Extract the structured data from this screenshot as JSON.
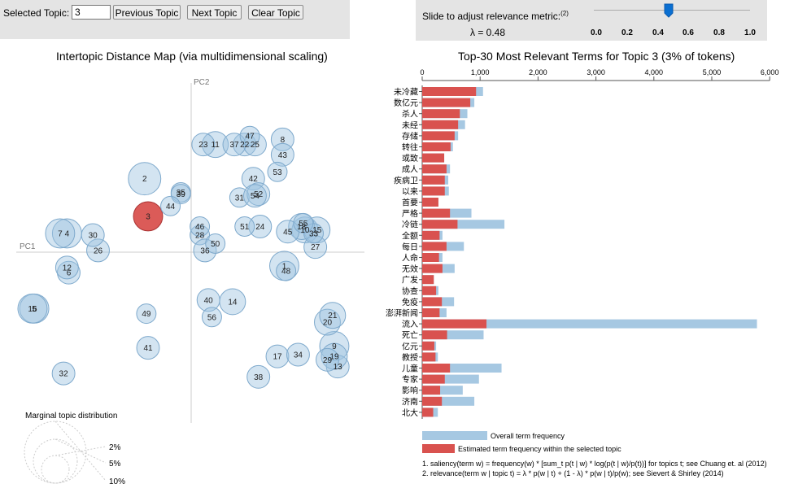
{
  "controls": {
    "selected_topic_label": "Selected Topic:",
    "selected_topic_value": "3",
    "prev_label": "Previous Topic",
    "next_label": "Next Topic",
    "clear_label": "Clear Topic",
    "slider_label": "Slide to adjust relevance metric:",
    "slider_note": "(2)",
    "lambda_text": "λ = 0.48",
    "lambda_value": 0.48,
    "slider_ticks": [
      "0.0",
      "0.2",
      "0.4",
      "0.6",
      "0.8",
      "1.0"
    ]
  },
  "colors": {
    "circle_fill": "#9ec3e0",
    "selected_fill": "#d9524f",
    "overall_bar": "#a6c8e2",
    "topic_bar": "#d9524f",
    "slider_handle": "#0a6fd1"
  },
  "chart_data": [
    {
      "type": "scatter",
      "title": "Intertopic Distance Map (via multidimensional scaling)",
      "xlabel": "PC1",
      "ylabel": "PC2",
      "xlim": [
        -1,
        1
      ],
      "ylim": [
        -1,
        1
      ],
      "selected_topic": "3",
      "points": [
        {
          "id": "1",
          "x": 0.54,
          "y": -0.08,
          "r": 0.09
        },
        {
          "id": "2",
          "x": -0.27,
          "y": 0.43,
          "r": 0.1
        },
        {
          "id": "3",
          "x": -0.25,
          "y": 0.21,
          "r": 0.09
        },
        {
          "id": "4",
          "x": -0.72,
          "y": 0.11,
          "r": 0.09
        },
        {
          "id": "5",
          "x": -0.91,
          "y": -0.33,
          "r": 0.09
        },
        {
          "id": "6",
          "x": -0.71,
          "y": -0.12,
          "r": 0.07
        },
        {
          "id": "7",
          "x": -0.76,
          "y": 0.11,
          "r": 0.09
        },
        {
          "id": "8",
          "x": 0.53,
          "y": 0.66,
          "r": 0.07
        },
        {
          "id": "9",
          "x": 0.83,
          "y": -0.55,
          "r": 0.09
        },
        {
          "id": "10",
          "x": 0.66,
          "y": 0.13,
          "r": 0.08
        },
        {
          "id": "11",
          "x": 0.14,
          "y": 0.63,
          "r": 0.08
        },
        {
          "id": "12",
          "x": -0.72,
          "y": -0.09,
          "r": 0.07
        },
        {
          "id": "13",
          "x": 0.85,
          "y": -0.67,
          "r": 0.07
        },
        {
          "id": "14",
          "x": 0.24,
          "y": -0.29,
          "r": 0.08
        },
        {
          "id": "15",
          "x": 0.73,
          "y": 0.13,
          "r": 0.08
        },
        {
          "id": "16",
          "x": -0.92,
          "y": -0.33,
          "r": 0.09
        },
        {
          "id": "17",
          "x": 0.5,
          "y": -0.61,
          "r": 0.07
        },
        {
          "id": "18",
          "x": 0.64,
          "y": 0.15,
          "r": 0.08
        },
        {
          "id": "19",
          "x": 0.83,
          "y": -0.61,
          "r": 0.08
        },
        {
          "id": "20",
          "x": 0.79,
          "y": -0.41,
          "r": 0.08
        },
        {
          "id": "21",
          "x": 0.82,
          "y": -0.37,
          "r": 0.08
        },
        {
          "id": "22",
          "x": 0.31,
          "y": 0.63,
          "r": 0.07
        },
        {
          "id": "23",
          "x": 0.07,
          "y": 0.63,
          "r": 0.07
        },
        {
          "id": "24",
          "x": 0.4,
          "y": 0.15,
          "r": 0.07
        },
        {
          "id": "25",
          "x": 0.37,
          "y": 0.63,
          "r": 0.07
        },
        {
          "id": "26",
          "x": -0.54,
          "y": 0.01,
          "r": 0.07
        },
        {
          "id": "27",
          "x": 0.72,
          "y": 0.03,
          "r": 0.07
        },
        {
          "id": "28",
          "x": 0.05,
          "y": 0.1,
          "r": 0.06
        },
        {
          "id": "29",
          "x": 0.79,
          "y": -0.63,
          "r": 0.07
        },
        {
          "id": "30",
          "x": -0.57,
          "y": 0.1,
          "r": 0.07
        },
        {
          "id": "31",
          "x": 0.28,
          "y": 0.32,
          "r": 0.06
        },
        {
          "id": "32",
          "x": -0.74,
          "y": -0.71,
          "r": 0.07
        },
        {
          "id": "33",
          "x": 0.71,
          "y": 0.11,
          "r": 0.06
        },
        {
          "id": "34",
          "x": 0.62,
          "y": -0.6,
          "r": 0.07
        },
        {
          "id": "35",
          "x": -0.06,
          "y": 0.35,
          "r": 0.06
        },
        {
          "id": "36",
          "x": 0.08,
          "y": 0.01,
          "r": 0.07
        },
        {
          "id": "37",
          "x": 0.25,
          "y": 0.63,
          "r": 0.07
        },
        {
          "id": "38",
          "x": 0.39,
          "y": -0.73,
          "r": 0.07
        },
        {
          "id": "39",
          "x": -0.06,
          "y": 0.34,
          "r": 0.06
        },
        {
          "id": "40",
          "x": 0.1,
          "y": -0.28,
          "r": 0.07
        },
        {
          "id": "41",
          "x": -0.25,
          "y": -0.56,
          "r": 0.07
        },
        {
          "id": "42",
          "x": 0.36,
          "y": 0.43,
          "r": 0.07
        },
        {
          "id": "43",
          "x": 0.53,
          "y": 0.57,
          "r": 0.07
        },
        {
          "id": "44",
          "x": -0.12,
          "y": 0.27,
          "r": 0.06
        },
        {
          "id": "45",
          "x": 0.56,
          "y": 0.12,
          "r": 0.07
        },
        {
          "id": "46",
          "x": 0.05,
          "y": 0.15,
          "r": 0.06
        },
        {
          "id": "47",
          "x": 0.34,
          "y": 0.68,
          "r": 0.06
        },
        {
          "id": "48",
          "x": 0.55,
          "y": -0.11,
          "r": 0.06
        },
        {
          "id": "49",
          "x": -0.26,
          "y": -0.36,
          "r": 0.06
        },
        {
          "id": "50",
          "x": 0.14,
          "y": 0.05,
          "r": 0.06
        },
        {
          "id": "51",
          "x": 0.31,
          "y": 0.15,
          "r": 0.06
        },
        {
          "id": "52",
          "x": 0.39,
          "y": 0.34,
          "r": 0.07
        },
        {
          "id": "53",
          "x": 0.5,
          "y": 0.47,
          "r": 0.06
        },
        {
          "id": "54",
          "x": 0.37,
          "y": 0.33,
          "r": 0.07
        },
        {
          "id": "55",
          "x": 0.65,
          "y": 0.17,
          "r": 0.06
        },
        {
          "id": "56",
          "x": 0.12,
          "y": -0.38,
          "r": 0.06
        }
      ],
      "marginal_legend": {
        "title": "Marginal topic distribution",
        "labels": [
          "2%",
          "5%",
          "10%"
        ]
      }
    },
    {
      "type": "bar",
      "orientation": "horizontal",
      "title": "Top-30 Most Relevant Terms for Topic 3 (3% of tokens)",
      "xlim": [
        0,
        6000
      ],
      "xticks": [
        "0",
        "1,000",
        "2,000",
        "3,000",
        "4,000",
        "5,000",
        "6,000"
      ],
      "categories": [
        "未冷藏",
        "数亿元",
        "杀人",
        "未经",
        "存储",
        "转往",
        "或致",
        "成人",
        "疾病卫",
        "以来",
        "首要",
        "严格",
        "冷链",
        "全额",
        "每日",
        "人命",
        "无效",
        "广发",
        "协查",
        "免疫",
        "澎湃新闻",
        "流入",
        "死亡",
        "亿元",
        "教授",
        "儿童",
        "专家",
        "影响",
        "济南",
        "北大"
      ],
      "series": [
        {
          "name": "Overall term frequency",
          "values": [
            1050,
            900,
            780,
            740,
            620,
            530,
            380,
            480,
            450,
            460,
            280,
            850,
            1420,
            350,
            720,
            350,
            560,
            200,
            280,
            550,
            420,
            5780,
            1060,
            240,
            270,
            1370,
            980,
            700,
            900,
            270
          ]
        },
        {
          "name": "Estimated term frequency within the selected topic",
          "values": [
            930,
            830,
            650,
            620,
            560,
            490,
            380,
            420,
            390,
            390,
            280,
            480,
            610,
            300,
            420,
            290,
            350,
            200,
            240,
            340,
            300,
            1110,
            430,
            210,
            230,
            480,
            390,
            310,
            340,
            190
          ]
        }
      ],
      "legend": [
        "Overall term frequency",
        "Estimated term frequency within the selected topic"
      ],
      "footnotes": [
        "1. saliency(term w) = frequency(w) * [sum_t p(t | w) * log(p(t | w)/p(t))] for topics t; see Chuang et. al (2012)",
        "2. relevance(term w | topic t) = λ * p(w | t) + (1 - λ) * p(w | t)/p(w); see Sievert & Shirley (2014)"
      ]
    }
  ]
}
